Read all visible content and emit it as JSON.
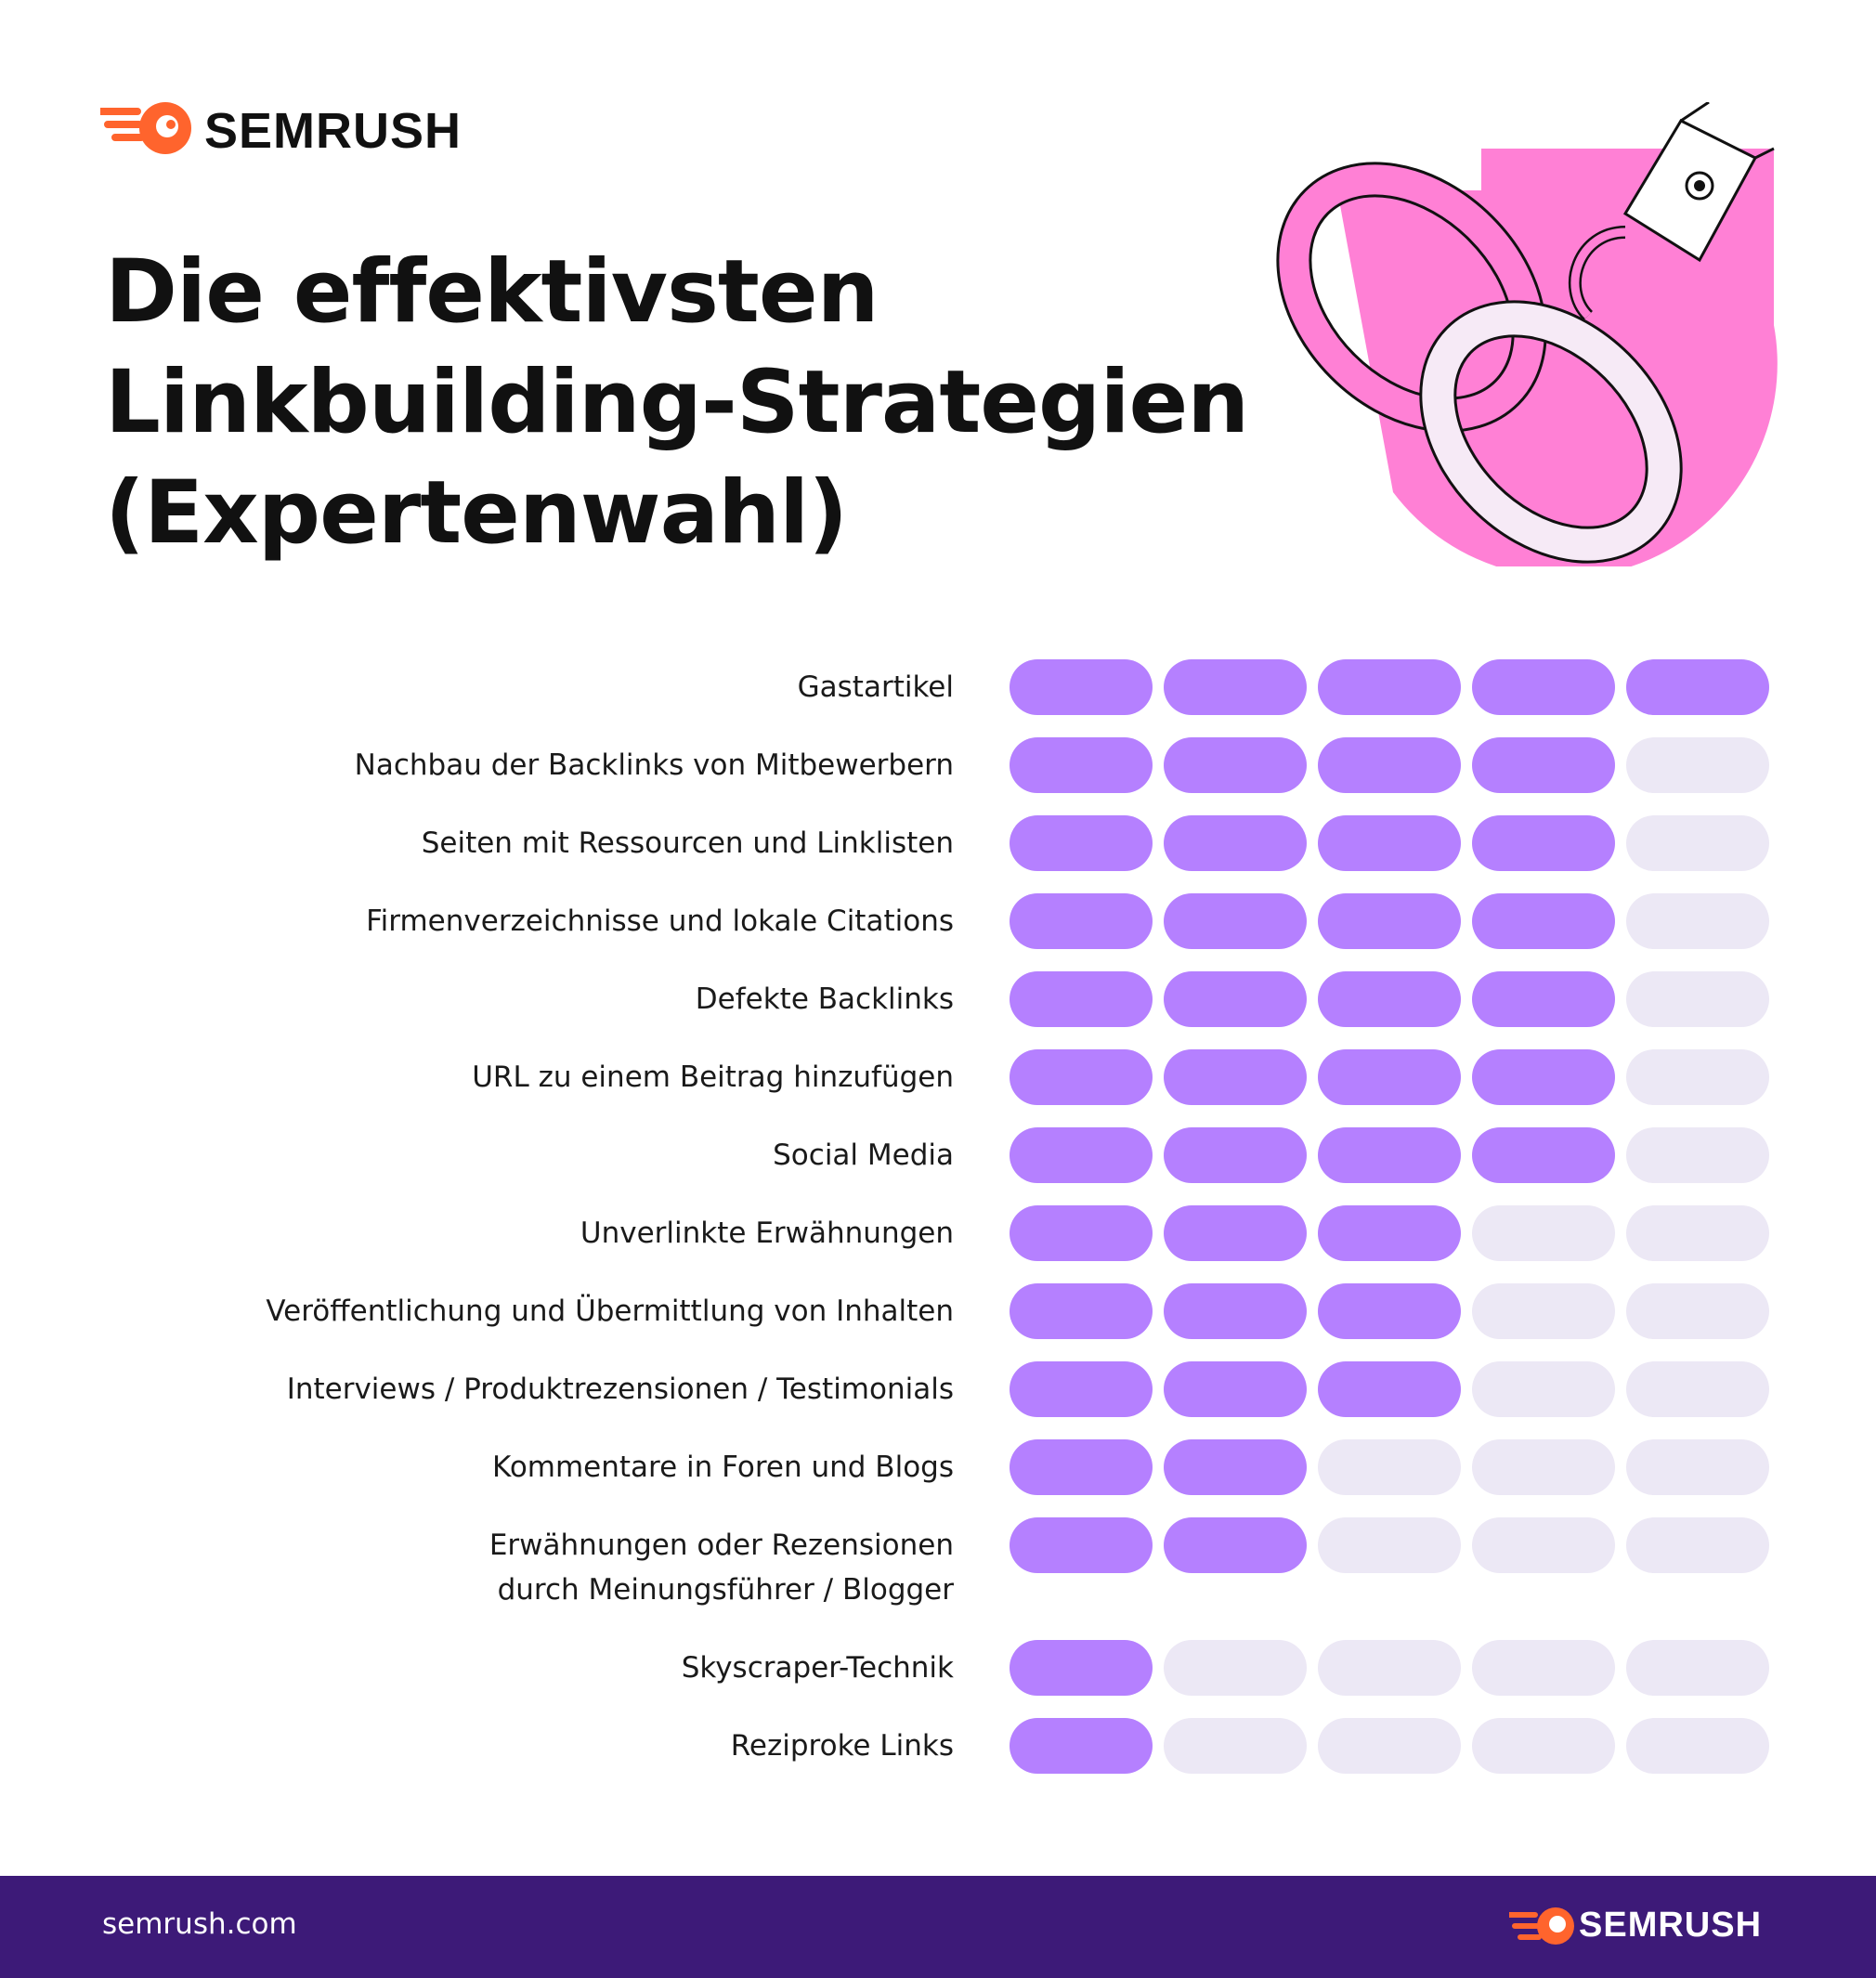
{
  "header": {
    "brand": "SEMRUSH"
  },
  "chart_data": {
    "type": "rating",
    "title": "Die effektivsten\nLinkbuilding-Strategien\n(Expertenwahl)",
    "categories": [
      "Gastartikel",
      "Nachbau der Backlinks von Mitbewerbern",
      "Seiten mit Ressourcen und Linklisten",
      "Firmenverzeichnisse und lokale Citations",
      "Defekte Backlinks",
      "URL zu einem Beitrag hinzufügen",
      "Social Media",
      "Unverlinkte Erwähnungen",
      "Veröffentlichung und Übermittlung von Inhalten",
      "Interviews / Produktrezensionen / Testimonials",
      "Kommentare in Foren und Blogs",
      "Erwähnungen oder Rezensionen\ndurch Meinungsführer / Blogger",
      "Skyscraper-Technik",
      "Reziproke Links"
    ],
    "values": [
      5,
      4,
      4,
      4,
      4,
      4,
      4,
      3,
      3,
      3,
      2,
      2,
      1,
      1
    ],
    "xlim": [
      0,
      5
    ],
    "color": "#b580ff",
    "empty_color": "#ece8f5"
  },
  "footer": {
    "url": "semrush.com",
    "brand": "SEMRUSH"
  }
}
